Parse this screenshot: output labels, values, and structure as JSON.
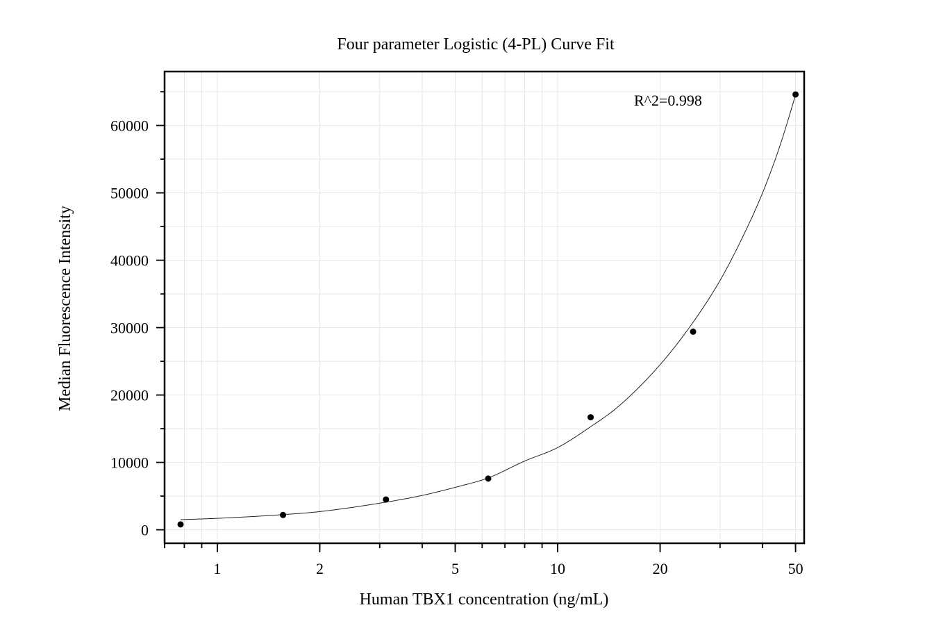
{
  "chart_data": {
    "type": "scatter",
    "title": "Four parameter Logistic (4-PL) Curve Fit",
    "xlabel": "Human TBX1 concentration (ng/mL)",
    "ylabel": "Median Fluorescence Intensity",
    "x_scale": "log",
    "xlim": [
      0.7,
      53
    ],
    "ylim": [
      -2000,
      68000
    ],
    "x_ticks": [
      1,
      2,
      5,
      10,
      20,
      50
    ],
    "x_tick_labels": [
      "1",
      "2",
      "5",
      "10",
      "20",
      "50"
    ],
    "y_ticks": [
      0,
      10000,
      20000,
      30000,
      40000,
      50000,
      60000
    ],
    "y_tick_labels": [
      "0",
      "10000",
      "20000",
      "30000",
      "40000",
      "50000",
      "60000"
    ],
    "grid": true,
    "annotation": "R^2=0.998",
    "series": [
      {
        "kind": "points",
        "x": [
          0.78,
          1.56,
          3.13,
          6.25,
          12.5,
          25,
          50
        ],
        "y": [
          800,
          2200,
          4500,
          7600,
          16700,
          29400,
          64600
        ]
      },
      {
        "kind": "fit",
        "x": [
          0.78,
          1,
          1.56,
          2,
          3.13,
          4,
          5,
          6.25,
          8,
          10,
          12.5,
          15,
          20,
          25,
          30,
          35,
          40,
          45,
          50
        ],
        "y": [
          1500,
          1700,
          2250,
          2700,
          4100,
          5100,
          6300,
          7700,
          10200,
          12200,
          15300,
          18200,
          24500,
          30800,
          37000,
          43500,
          50000,
          57000,
          64500
        ]
      }
    ]
  }
}
